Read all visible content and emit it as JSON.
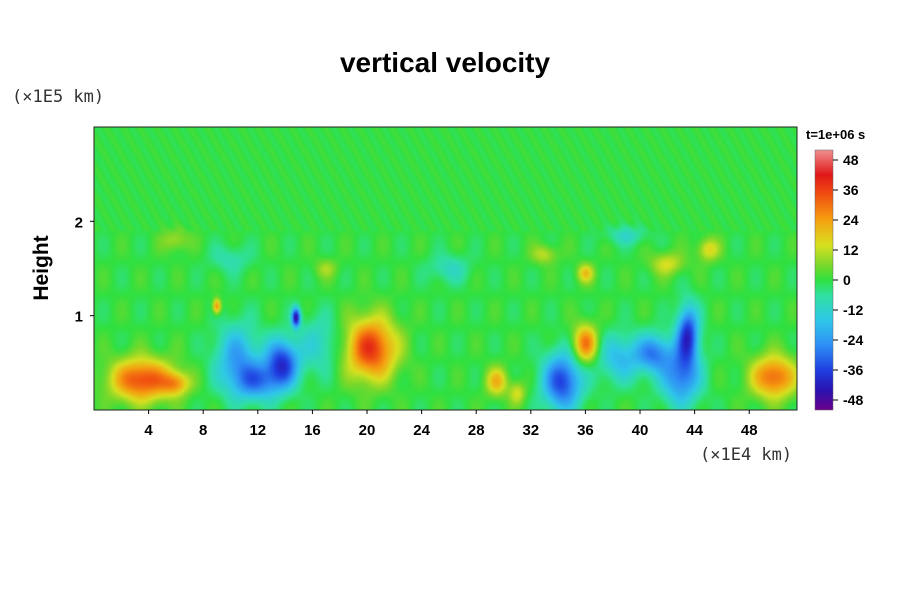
{
  "chart_data": {
    "type": "heatmap",
    "title": "vertical velocity",
    "xlabel": "",
    "ylabel": "Height",
    "x_unit": "(×1E4 km)",
    "y_unit": "(×1E5 km)",
    "xlim": [
      0,
      51.5
    ],
    "ylim": [
      0,
      3
    ],
    "x_ticks": [
      4,
      8,
      12,
      16,
      20,
      24,
      28,
      32,
      36,
      40,
      44,
      48
    ],
    "y_ticks": [
      1,
      2
    ],
    "time_label": "t=1e+06 s",
    "colorbar": {
      "range": [
        -52,
        52
      ],
      "ticks": [
        48,
        36,
        24,
        12,
        0,
        -12,
        -24,
        -36,
        -48
      ],
      "stops": [
        {
          "value": -52,
          "color": "#6a008a"
        },
        {
          "value": -44,
          "color": "#2a12b0"
        },
        {
          "value": -36,
          "color": "#1f3fe0"
        },
        {
          "value": -26,
          "color": "#2f8ff5"
        },
        {
          "value": -16,
          "color": "#2fc8e8"
        },
        {
          "value": -6,
          "color": "#2fe0a0"
        },
        {
          "value": 0,
          "color": "#30e040"
        },
        {
          "value": 6,
          "color": "#7ad82a"
        },
        {
          "value": 14,
          "color": "#d8e020"
        },
        {
          "value": 24,
          "color": "#f5a010"
        },
        {
          "value": 34,
          "color": "#f05010"
        },
        {
          "value": 42,
          "color": "#e01818"
        },
        {
          "value": 52,
          "color": "#f09090"
        }
      ]
    },
    "features": [
      {
        "x": 3.5,
        "y": 0.32,
        "sx": 2.2,
        "sy": 0.22,
        "value": 36
      },
      {
        "x": 6.0,
        "y": 0.28,
        "sx": 1.0,
        "sy": 0.12,
        "value": 20
      },
      {
        "x": 10.5,
        "y": 0.55,
        "sx": 1.6,
        "sy": 0.35,
        "value": -22
      },
      {
        "x": 13.8,
        "y": 0.5,
        "sx": 1.2,
        "sy": 0.25,
        "value": -36
      },
      {
        "x": 12.0,
        "y": 0.3,
        "sx": 1.8,
        "sy": 0.2,
        "value": -24
      },
      {
        "x": 9.0,
        "y": 1.1,
        "sx": 0.3,
        "sy": 0.08,
        "value": 28
      },
      {
        "x": 14.8,
        "y": 0.98,
        "sx": 0.3,
        "sy": 0.1,
        "value": -44
      },
      {
        "x": 16.5,
        "y": 0.7,
        "sx": 1.5,
        "sy": 0.3,
        "value": -12
      },
      {
        "x": 20.3,
        "y": 0.65,
        "sx": 1.8,
        "sy": 0.32,
        "value": 38
      },
      {
        "x": 29.5,
        "y": 0.3,
        "sx": 0.8,
        "sy": 0.15,
        "value": 20
      },
      {
        "x": 31.0,
        "y": 0.18,
        "sx": 0.6,
        "sy": 0.12,
        "value": 14
      },
      {
        "x": 34.3,
        "y": 0.3,
        "sx": 1.4,
        "sy": 0.3,
        "value": -36
      },
      {
        "x": 36.0,
        "y": 0.7,
        "sx": 0.9,
        "sy": 0.2,
        "value": 30
      },
      {
        "x": 38.5,
        "y": 0.55,
        "sx": 1.6,
        "sy": 0.25,
        "value": -18
      },
      {
        "x": 41.0,
        "y": 0.6,
        "sx": 1.3,
        "sy": 0.2,
        "value": -26
      },
      {
        "x": 43.5,
        "y": 0.8,
        "sx": 0.8,
        "sy": 0.3,
        "value": -38
      },
      {
        "x": 43.0,
        "y": 0.35,
        "sx": 1.4,
        "sy": 0.3,
        "value": -28
      },
      {
        "x": 49.8,
        "y": 0.35,
        "sx": 1.6,
        "sy": 0.22,
        "value": 32
      },
      {
        "x": 6.0,
        "y": 1.8,
        "sx": 1.0,
        "sy": 0.12,
        "value": 10
      },
      {
        "x": 17.0,
        "y": 1.5,
        "sx": 0.8,
        "sy": 0.1,
        "value": 9
      },
      {
        "x": 33.0,
        "y": 1.65,
        "sx": 0.9,
        "sy": 0.1,
        "value": 12
      },
      {
        "x": 36.0,
        "y": 1.45,
        "sx": 0.6,
        "sy": 0.1,
        "value": 18
      },
      {
        "x": 42.0,
        "y": 1.55,
        "sx": 1.2,
        "sy": 0.12,
        "value": 14
      },
      {
        "x": 45.0,
        "y": 1.7,
        "sx": 0.8,
        "sy": 0.12,
        "value": 16
      },
      {
        "x": 26.0,
        "y": 1.5,
        "sx": 1.5,
        "sy": 0.15,
        "value": -10
      },
      {
        "x": 10.0,
        "y": 1.6,
        "sx": 1.5,
        "sy": 0.15,
        "value": -8
      },
      {
        "x": 39.0,
        "y": 1.85,
        "sx": 1.5,
        "sy": 0.1,
        "value": -10
      }
    ]
  }
}
